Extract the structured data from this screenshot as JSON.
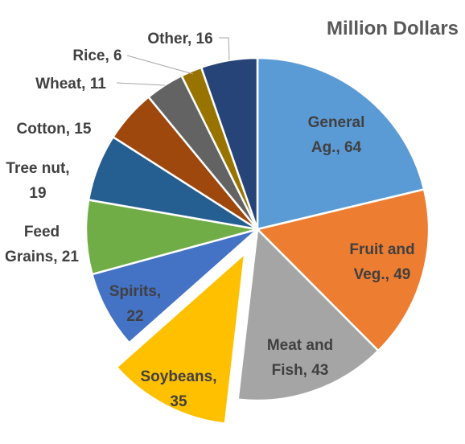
{
  "chart_data": {
    "type": "pie",
    "title": "Million Dollars",
    "start_angle_deg": 0,
    "direction": "clockwise",
    "exploded": [
      "Soybeans"
    ],
    "slices": [
      {
        "name": "General Ag.",
        "label_lines": [
          "General",
          "Ag., 64"
        ],
        "value": 64,
        "color": "#5B9BD5",
        "label_inside": true,
        "label_color": "#404040"
      },
      {
        "name": "Fruit and Veg.",
        "label_lines": [
          "Fruit and",
          "Veg., 49"
        ],
        "value": 49,
        "color": "#ED7D31",
        "label_inside": true,
        "label_color": "#404040"
      },
      {
        "name": "Meat and Fish",
        "label_lines": [
          "Meat and",
          "Fish, 43"
        ],
        "value": 43,
        "color": "#A5A5A5",
        "label_inside": true,
        "label_color": "#404040"
      },
      {
        "name": "Soybeans",
        "label_lines": [
          "Soybeans,",
          "35"
        ],
        "value": 35,
        "color": "#FFC000",
        "label_inside": true,
        "label_color": "#404040"
      },
      {
        "name": "Spirits",
        "label_lines": [
          "Spirits,",
          "22"
        ],
        "value": 22,
        "color": "#4472C4",
        "label_inside": true,
        "label_color": "#404040"
      },
      {
        "name": "Feed Grains",
        "label_lines": [
          "Feed",
          "Grains, 21"
        ],
        "value": 21,
        "color": "#70AD47",
        "label_inside": false,
        "label_color": "#404040"
      },
      {
        "name": "Tree nut",
        "label_lines": [
          "Tree nut,",
          "19"
        ],
        "value": 19,
        "color": "#255E91",
        "label_inside": false,
        "label_color": "#404040"
      },
      {
        "name": "Cotton",
        "label_lines": [
          "Cotton, 15"
        ],
        "value": 15,
        "color": "#9E480E",
        "label_inside": false,
        "label_color": "#404040"
      },
      {
        "name": "Wheat",
        "label_lines": [
          "Wheat, 11"
        ],
        "value": 11,
        "color": "#636363",
        "label_inside": false,
        "label_color": "#404040"
      },
      {
        "name": "Rice",
        "label_lines": [
          "Rice, 6"
        ],
        "value": 6,
        "color": "#997300",
        "label_inside": false,
        "label_color": "#404040"
      },
      {
        "name": "Other",
        "label_lines": [
          "Other, 16"
        ],
        "value": 16,
        "color": "#264478",
        "label_inside": false,
        "label_color": "#404040"
      }
    ]
  }
}
